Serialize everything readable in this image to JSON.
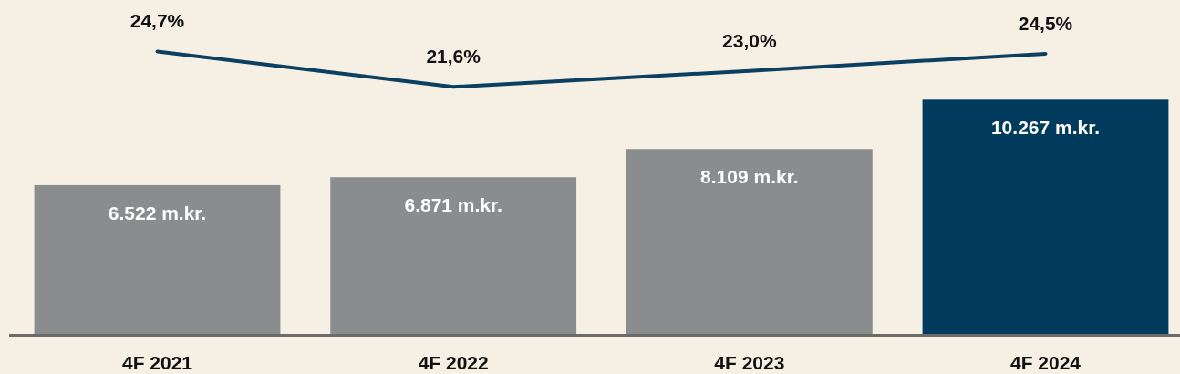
{
  "chart_data": {
    "type": "bar",
    "categories": [
      "4F 2021",
      "4F 2022",
      "4F 2023",
      "4F 2024"
    ],
    "ylim": [
      0,
      14640
    ],
    "y2lim": [
      0,
      29.2
    ],
    "series": [
      {
        "colors": [
          "#8a8d8d",
          "#8a8d8d",
          "#8a8d8d",
          "#003a5c"
        ],
        "values": [
          6522,
          6871,
          8109,
          10267
        ],
        "value_labels": [
          "6.522 m.kr.",
          "6.871 m.kr.",
          "8.109 m.kr.",
          "10.267 m.kr."
        ]
      },
      {
        "type": "line",
        "axis": "y2",
        "color": "#0d4060",
        "values": [
          24.7,
          21.6,
          23.0,
          24.5
        ],
        "value_labels": [
          "24,7%",
          "21,6%",
          "23,0%",
          "24,5%"
        ]
      }
    ]
  }
}
